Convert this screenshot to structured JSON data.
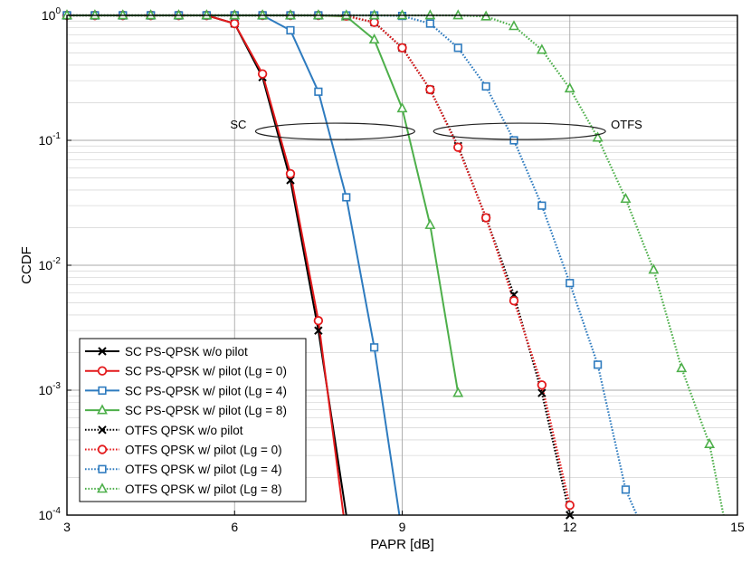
{
  "chart_data": {
    "type": "line",
    "xlabel": "PAPR [dB]",
    "ylabel": "CCDF",
    "xlim": [
      3,
      15
    ],
    "ylim": [
      0.0001,
      1
    ],
    "yscale": "log",
    "grid": true,
    "legend_position": "bottom-left",
    "x_ticks": [
      {
        "value": 3,
        "label": "3"
      },
      {
        "value": 6,
        "label": "6"
      },
      {
        "value": 9,
        "label": "9"
      },
      {
        "value": 12,
        "label": "12"
      },
      {
        "value": 15,
        "label": "15"
      }
    ],
    "y_ticks": [
      {
        "value": 1,
        "base": "10",
        "exp": "0"
      },
      {
        "value": 0.1,
        "base": "10",
        "exp": "-1"
      },
      {
        "value": 0.01,
        "base": "10",
        "exp": "-2"
      },
      {
        "value": 0.001,
        "base": "10",
        "exp": "-3"
      },
      {
        "value": 0.0001,
        "base": "10",
        "exp": "-4"
      }
    ],
    "annotations": [
      {
        "text": "SC",
        "x": 7.8,
        "y": 0.118
      },
      {
        "text": "OTFS",
        "x": 11.1,
        "y": 0.118
      }
    ],
    "series": [
      {
        "name": "SC PS-QPSK w/o pilot",
        "color": "#000000",
        "dash": "solid",
        "marker": "x",
        "x": [
          3,
          3.5,
          4,
          4.5,
          5,
          5.5,
          6,
          6.5,
          7,
          7.5,
          8.0
        ],
        "y": [
          1,
          1,
          1,
          1,
          1,
          1,
          0.86,
          0.32,
          0.048,
          0.003,
          0.0001
        ],
        "markers_x": [
          3,
          3.5,
          4,
          4.5,
          5,
          5.5,
          6,
          6.5,
          7,
          7.5
        ]
      },
      {
        "name": "SC PS-QPSK w/ pilot (Lg = 0)",
        "color": "#e31a1c",
        "dash": "solid",
        "marker": "o",
        "x": [
          3,
          3.5,
          4,
          4.5,
          5,
          5.5,
          6,
          6.5,
          7,
          7.5,
          7.95
        ],
        "y": [
          1,
          1,
          1,
          1,
          1,
          1,
          0.86,
          0.34,
          0.054,
          0.0036,
          0.0001
        ],
        "markers_x": [
          3,
          3.5,
          4,
          4.5,
          5,
          5.5,
          6,
          6.5,
          7,
          7.5
        ]
      },
      {
        "name": "SC PS-QPSK w/ pilot (Lg = 4)",
        "color": "#2e7bbf",
        "dash": "solid",
        "marker": "s",
        "x": [
          3,
          3.5,
          4,
          4.5,
          5,
          5.5,
          6,
          6.5,
          7,
          7.5,
          8,
          8.5,
          8.95
        ],
        "y": [
          1,
          1,
          1,
          1,
          1,
          1,
          1,
          1,
          0.76,
          0.245,
          0.035,
          0.0022,
          0.0001
        ],
        "markers_x": [
          3,
          3.5,
          4,
          4.5,
          5,
          5.5,
          6,
          6.5,
          7,
          7.5,
          8,
          8.5
        ]
      },
      {
        "name": "SC PS-QPSK w/ pilot (Lg = 8)",
        "color": "#4daf4a",
        "dash": "solid",
        "marker": "^",
        "x": [
          3,
          3.5,
          4,
          4.5,
          5,
          5.5,
          6,
          6.5,
          7,
          7.5,
          8,
          8.5,
          9,
          9.5,
          10
        ],
        "y": [
          1,
          1,
          1,
          1,
          1,
          1,
          1,
          1,
          1,
          1,
          0.98,
          0.64,
          0.18,
          0.021,
          0.00095
        ],
        "markers_x": [
          3,
          3.5,
          4,
          4.5,
          5,
          5.5,
          6,
          6.5,
          7,
          7.5,
          8,
          8.5,
          9,
          9.5,
          10
        ]
      },
      {
        "name": "OTFS QPSK w/o pilot",
        "color": "#000000",
        "dash": "dotted",
        "marker": "x",
        "x": [
          3,
          3.5,
          4,
          4.5,
          5,
          5.5,
          6,
          6.5,
          7,
          7.5,
          8,
          8.5,
          9,
          9.5,
          10,
          10.5,
          11,
          11.5,
          12
        ],
        "y": [
          1,
          1,
          1,
          1,
          1,
          1,
          1,
          1,
          1,
          1,
          0.99,
          0.88,
          0.55,
          0.255,
          0.09,
          0.024,
          0.0058,
          0.00095,
          0.0001
        ],
        "markers_x": [
          3,
          3.5,
          4,
          4.5,
          5,
          5.5,
          6,
          6.5,
          7,
          7.5,
          8,
          8.5,
          9,
          9.5,
          10,
          10.5,
          11,
          11.5,
          12
        ]
      },
      {
        "name": "OTFS QPSK w/ pilot (Lg = 0)",
        "color": "#e31a1c",
        "dash": "dotted",
        "marker": "o",
        "x": [
          3,
          3.5,
          4,
          4.5,
          5,
          5.5,
          6,
          6.5,
          7,
          7.5,
          8,
          8.5,
          9,
          9.5,
          10,
          10.5,
          11,
          11.5,
          12
        ],
        "y": [
          1,
          1,
          1,
          1,
          1,
          1,
          1,
          1,
          1,
          1,
          0.99,
          0.88,
          0.55,
          0.255,
          0.088,
          0.024,
          0.0052,
          0.0011,
          0.00012
        ],
        "markers_x": [
          3,
          3.5,
          4,
          4.5,
          5,
          5.5,
          6,
          6.5,
          7,
          7.5,
          8,
          8.5,
          9,
          9.5,
          10,
          10.5,
          11,
          11.5,
          12
        ]
      },
      {
        "name": "OTFS QPSK w/ pilot (Lg = 4)",
        "color": "#2e7bbf",
        "dash": "dotted",
        "marker": "s",
        "x": [
          3,
          3.5,
          4,
          4.5,
          5,
          5.5,
          6,
          6.5,
          7,
          7.5,
          8,
          8.5,
          9,
          9.5,
          10,
          10.5,
          11,
          11.5,
          12,
          12.5,
          13,
          13.2
        ],
        "y": [
          1,
          1,
          1,
          1,
          1,
          1,
          1,
          1,
          1,
          1,
          1,
          1,
          0.99,
          0.86,
          0.55,
          0.27,
          0.1,
          0.03,
          0.0072,
          0.0016,
          0.00016,
          0.0001
        ],
        "markers_x": [
          3,
          3.5,
          4,
          4.5,
          5,
          5.5,
          6,
          6.5,
          7,
          7.5,
          8,
          8.5,
          9,
          9.5,
          10,
          10.5,
          11,
          11.5,
          12,
          12.5,
          13
        ]
      },
      {
        "name": "OTFS QPSK w/ pilot (Lg = 8)",
        "color": "#4daf4a",
        "dash": "dotted",
        "marker": "^",
        "x": [
          3,
          3.5,
          4,
          4.5,
          5,
          5.5,
          6,
          6.5,
          7,
          7.5,
          8,
          8.5,
          9,
          9.5,
          10,
          10.5,
          11,
          11.5,
          12,
          12.5,
          13,
          13.5,
          14,
          14.5,
          14.75
        ],
        "y": [
          1,
          1,
          1,
          1,
          1,
          1,
          1,
          1,
          1,
          1,
          1,
          1,
          1,
          1,
          1,
          0.98,
          0.82,
          0.53,
          0.26,
          0.105,
          0.034,
          0.0092,
          0.0015,
          0.00037,
          0.0001
        ],
        "markers_x": [
          3,
          3.5,
          4,
          4.5,
          5,
          5.5,
          6,
          6.5,
          7,
          7.5,
          8,
          8.5,
          9,
          9.5,
          10,
          10.5,
          11,
          11.5,
          12,
          12.5,
          13,
          13.5,
          14,
          14.5
        ]
      }
    ]
  }
}
